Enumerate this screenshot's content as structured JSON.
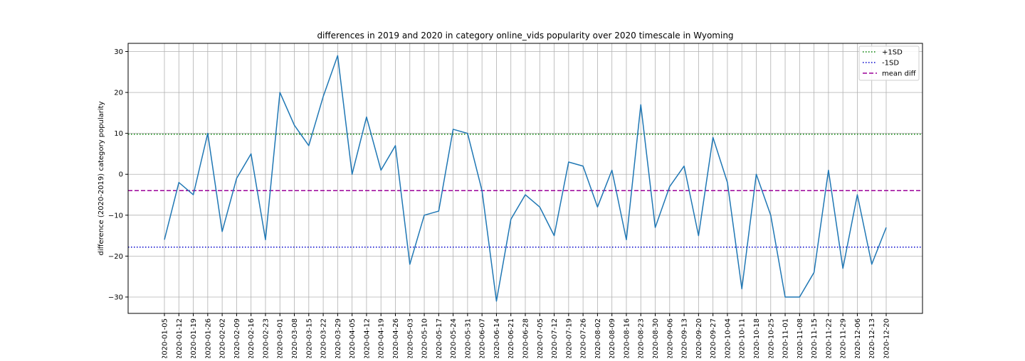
{
  "chart_data": {
    "type": "line",
    "title": "differences in 2019 and 2020 in category online_vids popularity over 2020 timescale in Wyoming",
    "xlabel": "",
    "ylabel": "difference (2020-2019) category popularity",
    "ylim": [
      -34,
      32
    ],
    "yticks": [
      -30,
      -20,
      -10,
      0,
      10,
      20,
      30
    ],
    "ytick_labels": [
      "−30",
      "−20",
      "−10",
      "0",
      "10",
      "20",
      "30"
    ],
    "grid": true,
    "legend_position": "top-right",
    "categories": [
      "2020-01-05",
      "2020-01-12",
      "2020-01-19",
      "2020-01-26",
      "2020-02-02",
      "2020-02-09",
      "2020-02-16",
      "2020-02-23",
      "2020-03-01",
      "2020-03-08",
      "2020-03-15",
      "2020-03-22",
      "2020-03-29",
      "2020-04-05",
      "2020-04-12",
      "2020-04-19",
      "2020-04-26",
      "2020-05-03",
      "2020-05-10",
      "2020-05-17",
      "2020-05-24",
      "2020-05-31",
      "2020-06-07",
      "2020-06-14",
      "2020-06-21",
      "2020-06-28",
      "2020-07-05",
      "2020-07-12",
      "2020-07-19",
      "2020-07-26",
      "2020-08-02",
      "2020-08-09",
      "2020-08-16",
      "2020-08-23",
      "2020-08-30",
      "2020-09-06",
      "2020-09-13",
      "2020-09-20",
      "2020-09-27",
      "2020-10-04",
      "2020-10-11",
      "2020-10-18",
      "2020-10-25",
      "2020-11-01",
      "2020-11-08",
      "2020-11-15",
      "2020-11-22",
      "2020-11-29",
      "2020-12-06",
      "2020-12-13",
      "2020-12-20"
    ],
    "series": [
      {
        "values": [
          -16,
          -2,
          -5,
          10,
          -14,
          -1,
          5,
          -16,
          20,
          12,
          7,
          19,
          29,
          0,
          14,
          1,
          7,
          -22,
          -10,
          -9,
          11,
          10,
          -4,
          -31,
          -11,
          -5,
          -8,
          -15,
          3,
          2,
          -8,
          1,
          -16,
          17,
          -13,
          -3,
          2,
          -15,
          9,
          -2,
          -28,
          0,
          -10,
          -30,
          -30,
          -24,
          1,
          -23,
          -5,
          -22,
          -13
        ],
        "color": "#1f77b4"
      }
    ],
    "reference_lines": [
      {
        "name": "+1SD",
        "value": 9.8,
        "color": "#008000",
        "style": "dotted"
      },
      {
        "name": "-1SD",
        "value": -17.8,
        "color": "#0000cc",
        "style": "dotted"
      },
      {
        "name": "mean diff",
        "value": -4.0,
        "color": "#9b0099",
        "style": "dashed"
      }
    ]
  }
}
